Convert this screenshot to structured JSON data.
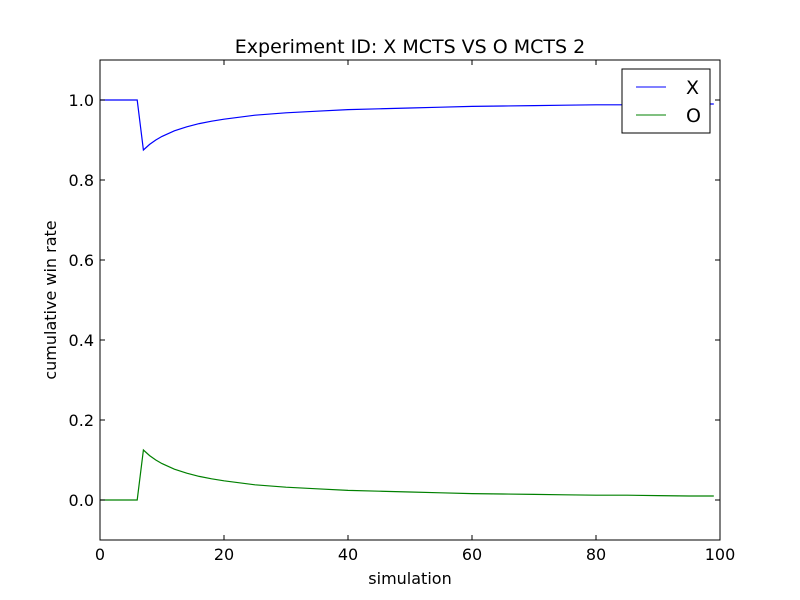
{
  "chart_data": {
    "type": "line",
    "title": "Experiment ID: X MCTS VS O MCTS 2",
    "xlabel": "simulation",
    "ylabel": "cumulative win rate",
    "xlim": [
      0,
      100
    ],
    "ylim": [
      -0.1,
      1.1
    ],
    "xticks": [
      0,
      20,
      40,
      60,
      80,
      100
    ],
    "yticks": [
      0.0,
      0.2,
      0.4,
      0.6,
      0.8,
      1.0
    ],
    "xtick_labels": [
      "0",
      "20",
      "40",
      "60",
      "80",
      "100"
    ],
    "ytick_labels": [
      "0.0",
      "0.2",
      "0.4",
      "0.6",
      "0.8",
      "1.0"
    ],
    "grid": false,
    "legend_position": "top-right",
    "series": [
      {
        "name": "X",
        "color": "#0000ff",
        "x": [
          0,
          1,
          2,
          3,
          4,
          5,
          6,
          7,
          8,
          9,
          10,
          12,
          14,
          16,
          18,
          20,
          25,
          30,
          35,
          40,
          45,
          50,
          55,
          60,
          65,
          70,
          75,
          80,
          85,
          90,
          95,
          99
        ],
        "y": [
          1.0,
          1.0,
          1.0,
          1.0,
          1.0,
          1.0,
          1.0,
          0.875,
          0.889,
          0.9,
          0.909,
          0.923,
          0.933,
          0.941,
          0.947,
          0.952,
          0.962,
          0.968,
          0.972,
          0.976,
          0.978,
          0.98,
          0.982,
          0.984,
          0.985,
          0.986,
          0.987,
          0.988,
          0.988,
          0.989,
          0.99,
          0.99
        ]
      },
      {
        "name": "O",
        "color": "#008000",
        "x": [
          0,
          1,
          2,
          3,
          4,
          5,
          6,
          7,
          8,
          9,
          10,
          12,
          14,
          16,
          18,
          20,
          25,
          30,
          35,
          40,
          45,
          50,
          55,
          60,
          65,
          70,
          75,
          80,
          85,
          90,
          95,
          99
        ],
        "y": [
          0.0,
          0.0,
          0.0,
          0.0,
          0.0,
          0.0,
          0.0,
          0.125,
          0.111,
          0.1,
          0.091,
          0.077,
          0.067,
          0.059,
          0.053,
          0.048,
          0.038,
          0.032,
          0.028,
          0.024,
          0.022,
          0.02,
          0.018,
          0.016,
          0.015,
          0.014,
          0.013,
          0.012,
          0.012,
          0.011,
          0.01,
          0.01
        ]
      }
    ]
  }
}
